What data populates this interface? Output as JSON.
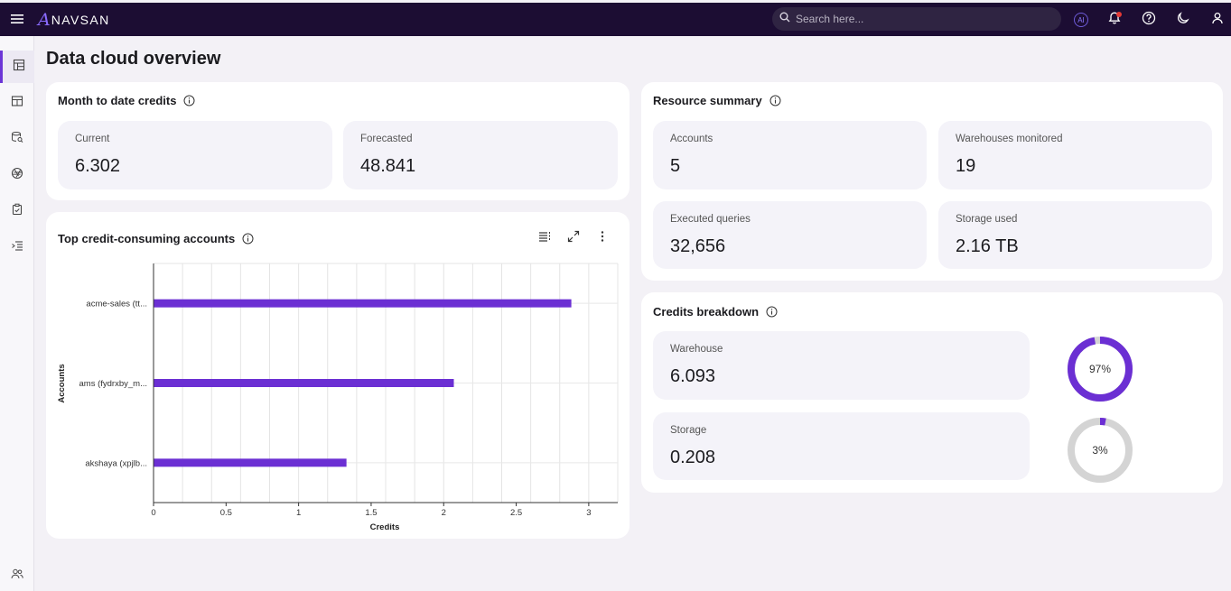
{
  "app": {
    "logo_letter": "A",
    "logo_text": "NAVSAN"
  },
  "search": {
    "placeholder": "Search here..."
  },
  "topbar": {
    "ai_label": "AI"
  },
  "page": {
    "title": "Data cloud overview"
  },
  "month_to_date": {
    "title": "Month to date credits",
    "tiles": [
      {
        "label": "Current",
        "value": "6.302"
      },
      {
        "label": "Forecasted",
        "value": "48.841"
      }
    ]
  },
  "resource_summary": {
    "title": "Resource summary",
    "tiles": [
      {
        "label": "Accounts",
        "value": "5"
      },
      {
        "label": "Warehouses monitored",
        "value": "19"
      },
      {
        "label": "Executed queries",
        "value": "32,656"
      },
      {
        "label": "Storage used",
        "value": "2.16 TB"
      }
    ]
  },
  "credits_breakdown": {
    "title": "Credits breakdown",
    "items": [
      {
        "label": "Warehouse",
        "value": "6.093",
        "percent_label": "97%",
        "percent": 97
      },
      {
        "label": "Storage",
        "value": "0.208",
        "percent_label": "3%",
        "percent": 3
      }
    ]
  },
  "top_accounts": {
    "title": "Top credit-consuming accounts"
  },
  "colors": {
    "accent": "#6b2fd3",
    "topbar": "#1c0d33",
    "ring_track": "#d4d4d4"
  },
  "chart_data": {
    "type": "bar",
    "orientation": "horizontal",
    "categories": [
      "acme-sales (tt...",
      "ams (fydrxby_m...",
      "akshaya (xpjlb..."
    ],
    "values": [
      2.88,
      2.07,
      1.33
    ],
    "xlabel": "Credits",
    "ylabel": "Accounts",
    "xlim": [
      0,
      3.2
    ],
    "xticks": [
      0,
      0.5,
      1,
      1.5,
      2,
      2.5,
      3
    ],
    "xtick_labels": [
      "0",
      "0.5",
      "1",
      "1.5",
      "2",
      "2.5",
      "3"
    ],
    "grid": true
  }
}
